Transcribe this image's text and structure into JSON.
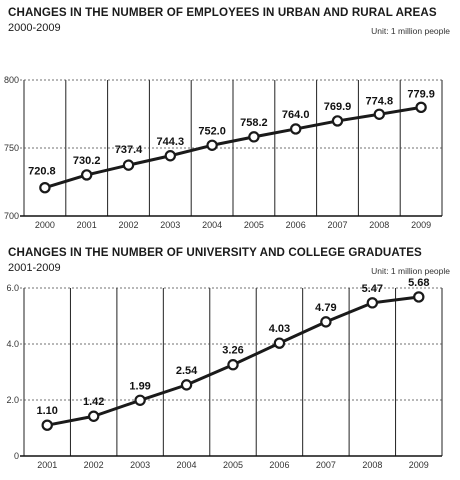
{
  "chart_data": [
    {
      "type": "line",
      "title": "CHANGES IN THE NUMBER OF EMPLOYEES IN URBAN AND RURAL AREAS",
      "subtitle": "2000-2009",
      "unit": "Unit: 1 million people",
      "x": [
        "2000",
        "2001",
        "2002",
        "2003",
        "2004",
        "2005",
        "2006",
        "2007",
        "2008",
        "2009"
      ],
      "series": [
        {
          "values": [
            720.8,
            730.2,
            737.4,
            744.3,
            752.0,
            758.2,
            764.0,
            769.9,
            774.8,
            779.9
          ]
        }
      ],
      "data_labels": [
        "720.8",
        "730.2",
        "737.4",
        "744.3",
        "752.0",
        "758.2",
        "764.0",
        "769.9",
        "774.8",
        "779.9"
      ],
      "ylim": [
        700,
        800
      ],
      "yticks": [
        "700",
        "750",
        "800"
      ],
      "grid": "vertical solid lines, horizontal dashed lines",
      "line_color": "#1a1a1a"
    },
    {
      "type": "line",
      "title": "CHANGES IN THE NUMBER OF UNIVERSITY AND COLLEGE GRADUATES",
      "subtitle": "2001-2009",
      "unit": "Unit: 1 million people",
      "x": [
        "2001",
        "2002",
        "2003",
        "2004",
        "2005",
        "2006",
        "2007",
        "2008",
        "2009"
      ],
      "series": [
        {
          "values": [
            1.1,
            1.42,
            1.99,
            2.54,
            3.26,
            4.03,
            4.79,
            5.47,
            5.68
          ]
        }
      ],
      "data_labels": [
        "1.10",
        "1.42",
        "1.99",
        "2.54",
        "3.26",
        "4.03",
        "4.79",
        "5.47",
        "5.68"
      ],
      "ylim": [
        0,
        6.0
      ],
      "yticks": [
        "0",
        "2.0",
        "4.0",
        "6.0"
      ],
      "grid": "vertical solid lines, horizontal dashed lines",
      "line_color": "#1a1a1a"
    }
  ]
}
